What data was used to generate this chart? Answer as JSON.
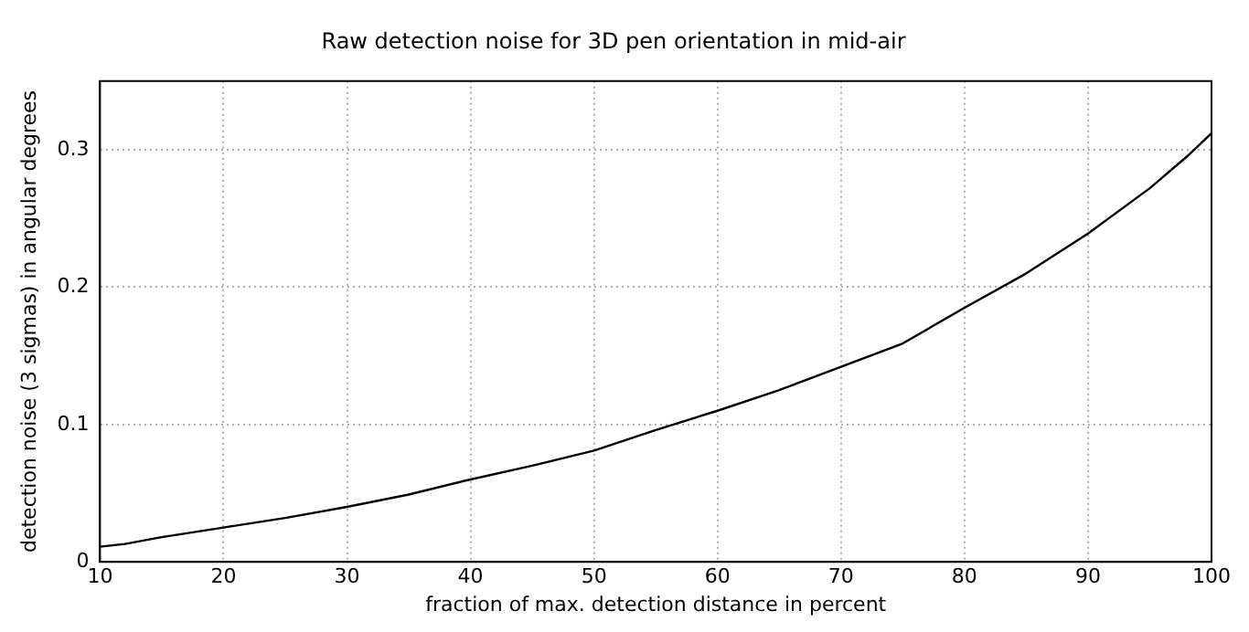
{
  "chart_data": {
    "type": "line",
    "title": "Raw detection noise for 3D pen orientation in mid-air",
    "xlabel": "fraction of max. detection distance in percent",
    "ylabel": "detection noise (3 sigmas) in angular degrees",
    "series": [
      {
        "color": "#000000",
        "x": [
          10,
          12,
          15,
          20,
          25,
          30,
          35,
          40,
          45,
          50,
          55,
          60,
          65,
          70,
          75,
          80,
          85,
          90,
          95,
          98,
          100
        ],
        "values": [
          0.011,
          0.013,
          0.018,
          0.025,
          0.032,
          0.04,
          0.049,
          0.06,
          0.07,
          0.081,
          0.096,
          0.11,
          0.125,
          0.142,
          0.159,
          0.185,
          0.21,
          0.239,
          0.272,
          0.295,
          0.312
        ]
      }
    ],
    "xlim": [
      10,
      100
    ],
    "xticks": [
      10,
      20,
      30,
      40,
      50,
      60,
      70,
      80,
      90,
      100
    ],
    "ylim": [
      0,
      0.35
    ],
    "yticks": [
      0,
      0.1,
      0.2,
      0.3
    ],
    "grid": true,
    "legend": false,
    "marker": "none",
    "line_style": "solid"
  }
}
